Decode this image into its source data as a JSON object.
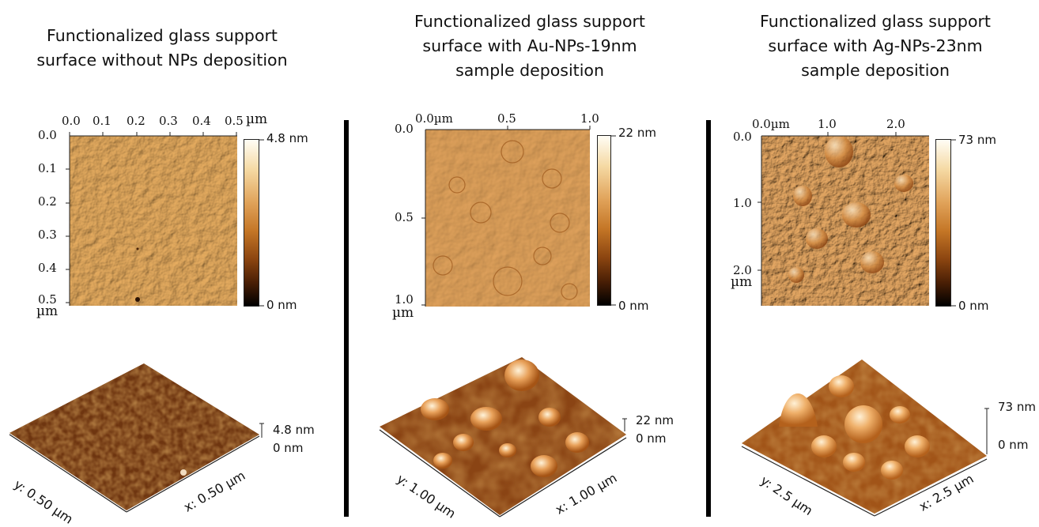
{
  "panels": [
    {
      "title": "Functionalized glass support surface without NPs deposition",
      "x_ticks": [
        "0.0",
        "0.1",
        "0.2",
        "0.3",
        "0.4",
        "0.5"
      ],
      "y_ticks": [
        "0.0",
        "0.1",
        "0.2",
        "0.3",
        "0.4",
        "0.5"
      ],
      "x_unit": "µm",
      "y_unit": "µm",
      "colorbar_max": "4.8 nm",
      "colorbar_min": "0 nm",
      "z_max": "4.8 nm",
      "z_min": "0 nm",
      "axis_y": "y: 0.50 µm",
      "axis_x": "x: 0.50 µm"
    },
    {
      "title": "Functionalized glass support surface with Au-NPs-19nm sample deposition",
      "x_ticks": [
        "0.0µm",
        "0.5",
        "1.0"
      ],
      "y_ticks": [
        "0.0",
        "0.5",
        "1.0"
      ],
      "y_unit": "µm",
      "colorbar_max": "22 nm",
      "colorbar_min": "0 nm",
      "z_max": "22 nm",
      "z_min": "0 nm",
      "axis_y": "y: 1.00 µm",
      "axis_x": "x: 1.00 µm"
    },
    {
      "title": "Functionalized glass support surface with Ag-NPs-23nm sample deposition",
      "x_ticks": [
        "0.0µm",
        "1.0",
        "2.0"
      ],
      "y_ticks": [
        "0.0",
        "1.0",
        "2.0"
      ],
      "y_unit": "µm",
      "colorbar_max": "73 nm",
      "colorbar_min": "0 nm",
      "z_max": "73 nm",
      "z_min": "0 nm",
      "axis_y": "y: 2.5 µm",
      "axis_x": "x: 2.5 µm"
    }
  ]
}
